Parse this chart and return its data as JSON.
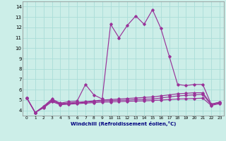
{
  "xlabel": "Windchill (Refroidissement éolien,°C)",
  "bg_color": "#cceee8",
  "grid_color": "#aaddd8",
  "line_color": "#993399",
  "x": [
    0,
    1,
    2,
    3,
    4,
    5,
    6,
    7,
    8,
    9,
    10,
    11,
    12,
    13,
    14,
    15,
    16,
    17,
    18,
    19,
    20,
    21,
    22,
    23
  ],
  "series1": [
    5.2,
    3.8,
    4.4,
    5.1,
    4.7,
    4.85,
    4.9,
    6.5,
    5.5,
    5.1,
    12.3,
    11.0,
    12.2,
    13.1,
    12.3,
    13.7,
    11.9,
    9.2,
    6.5,
    6.4,
    6.5,
    6.5,
    4.6,
    4.8
  ],
  "series2": [
    5.2,
    3.8,
    4.35,
    5.0,
    4.65,
    4.72,
    4.78,
    4.85,
    4.92,
    5.0,
    5.05,
    5.1,
    5.15,
    5.2,
    5.25,
    5.3,
    5.4,
    5.5,
    5.6,
    5.65,
    5.7,
    5.7,
    4.6,
    4.78
  ],
  "series3": [
    5.2,
    3.8,
    4.3,
    4.95,
    4.6,
    4.65,
    4.72,
    4.78,
    4.85,
    4.92,
    4.95,
    4.98,
    5.0,
    5.05,
    5.08,
    5.1,
    5.2,
    5.3,
    5.4,
    5.45,
    5.5,
    5.55,
    4.55,
    4.72
  ],
  "series4": [
    5.2,
    3.8,
    4.25,
    4.85,
    4.55,
    4.6,
    4.65,
    4.7,
    4.75,
    4.8,
    4.82,
    4.85,
    4.88,
    4.9,
    4.92,
    4.95,
    5.0,
    5.05,
    5.1,
    5.12,
    5.15,
    5.18,
    4.48,
    4.65
  ],
  "ylim": [
    3.5,
    14.5
  ],
  "xlim": [
    -0.5,
    23.5
  ],
  "yticks": [
    4,
    5,
    6,
    7,
    8,
    9,
    10,
    11,
    12,
    13,
    14
  ],
  "xticks": [
    0,
    1,
    2,
    3,
    4,
    5,
    6,
    7,
    8,
    9,
    10,
    11,
    12,
    13,
    14,
    15,
    16,
    17,
    18,
    19,
    20,
    21,
    22,
    23
  ]
}
